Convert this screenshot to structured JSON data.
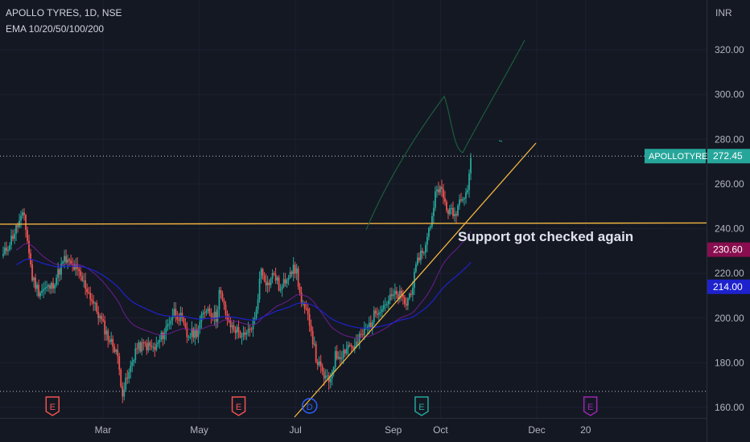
{
  "header": {
    "symbol": "APOLLO TYRES, 1D, NSE",
    "indicator": "EMA 10/20/50/100/200",
    "currency": "INR"
  },
  "chart_data": {
    "type": "candlestick",
    "y_ticks": [
      160,
      180,
      200,
      220,
      240,
      260,
      280,
      300,
      320
    ],
    "ylim": [
      155,
      337
    ],
    "x_ticks": [
      "Mar",
      "May",
      "Jul",
      "Sep",
      "Oct",
      "Dec",
      "20"
    ],
    "last_price": {
      "label": "APOLLOTYRE",
      "value": 272.45,
      "display": "272.45",
      "color": "#26a69a"
    },
    "ema_labels": [
      {
        "value": 230.6,
        "display": "230.60",
        "color": "#880e4f"
      },
      {
        "value": 214.0,
        "display": "214.00",
        "color": "#1e22cc"
      }
    ],
    "support_level": 242,
    "annotation": "Support got checked again",
    "event_markers": [
      {
        "label": "E",
        "type": "earnings",
        "color": "#ef5350"
      },
      {
        "label": "E",
        "type": "earnings",
        "color": "#ef5350"
      },
      {
        "label": "D",
        "type": "dividend",
        "color": "#2962ff"
      },
      {
        "label": "E",
        "type": "earnings",
        "color": "#26a69a"
      },
      {
        "label": "E",
        "type": "earnings",
        "color": "#9c27b0"
      }
    ],
    "colors": {
      "up": "#26a69a",
      "down": "#ef5350",
      "support": "#f2b540",
      "trendline": "#f2b540",
      "projection": "#1b5e3b",
      "ema_blue": "#1e22cc",
      "ema_purple": "#7b1fa2",
      "background": "#141823"
    }
  }
}
